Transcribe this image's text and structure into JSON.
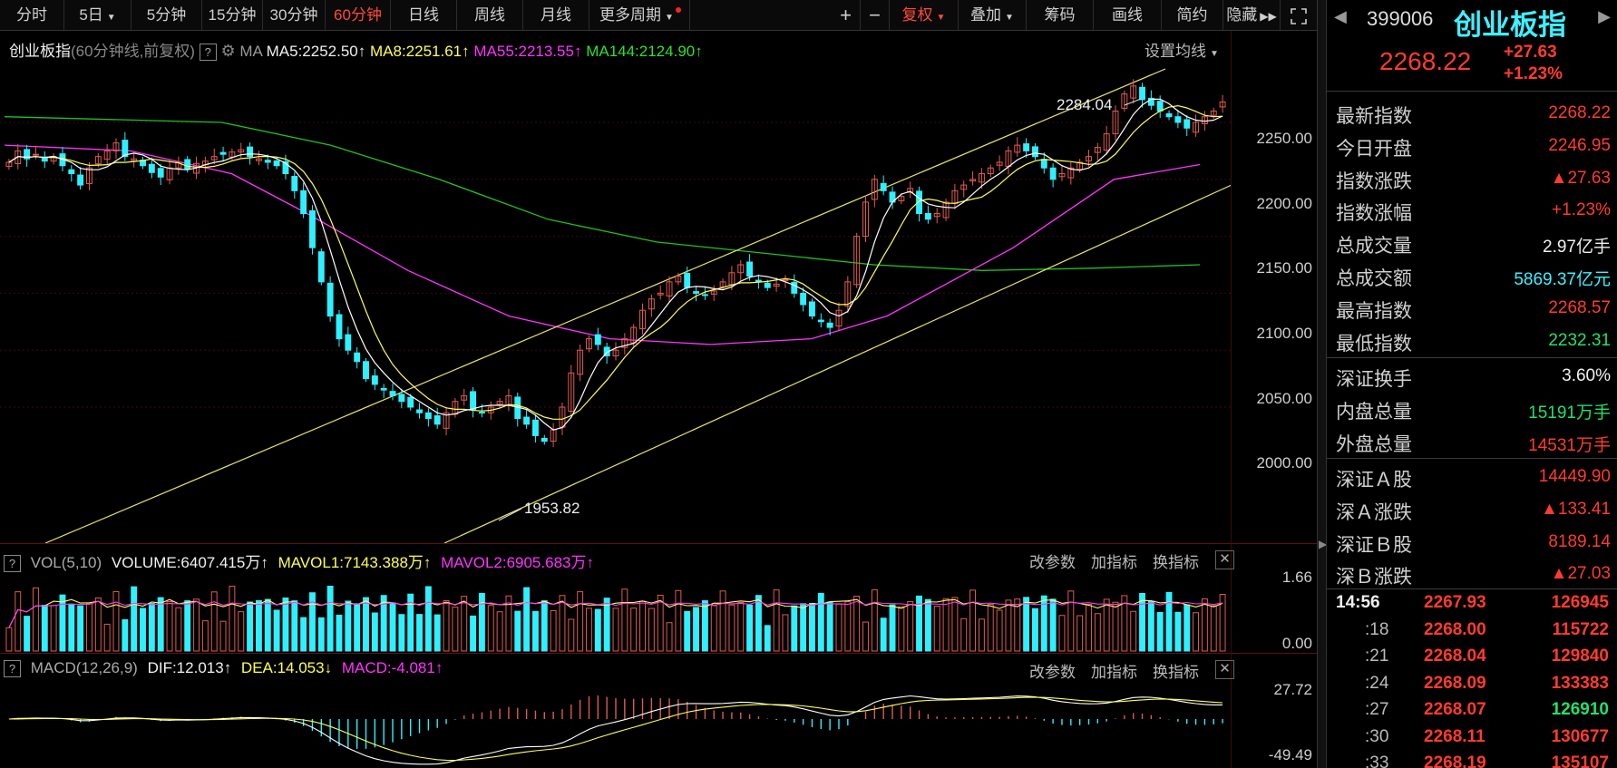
{
  "toolbar": {
    "periods": [
      {
        "label": "分时",
        "active": false
      },
      {
        "label": "5日",
        "active": false,
        "dropdown": true
      },
      {
        "label": "5分钟",
        "active": false
      },
      {
        "label": "15分钟",
        "active": false
      },
      {
        "label": "30分钟",
        "active": false
      },
      {
        "label": "60分钟",
        "active": true
      },
      {
        "label": "日线",
        "active": false
      },
      {
        "label": "周线",
        "active": false
      },
      {
        "label": "月线",
        "active": false
      },
      {
        "label": "更多周期",
        "active": false,
        "dropdown": true
      }
    ],
    "zoom_in": "+",
    "zoom_out": "−",
    "fuquan": "复权",
    "overlay": "叠加",
    "chips": "筹码",
    "draw": "画线",
    "simple": "简约",
    "hide": "隐藏",
    "expand_icon": "fullscreen-icon"
  },
  "main_legend": {
    "name": "创业板指",
    "period_note": "(60分钟线,前复权)",
    "ma_label": "MA",
    "ma5": "MA5:2252.50",
    "ma8": "MA8:2251.61",
    "ma55": "MA55:2213.55",
    "ma144": "MA144:2124.90",
    "settings": "设置均线"
  },
  "vol_legend": {
    "label": "VOL(5,10)",
    "volume": "VOLUME:6407.415万",
    "mavol1": "MAVOL1:7143.388万",
    "mavol2": "MAVOL2:6905.683万",
    "btn_params": "改参数",
    "btn_add": "加指标",
    "btn_switch": "换指标"
  },
  "macd_legend": {
    "label": "MACD(12,26,9)",
    "dif": "DIF:12.013",
    "dea": "DEA:14.053",
    "macd": "MACD:-4.081",
    "btn_params": "改参数",
    "btn_add": "加指标",
    "btn_switch": "换指标"
  },
  "annotations": {
    "high": "2284.04",
    "low": "1953.82"
  },
  "colors": {
    "up": "#ff3b30",
    "down": "#22e06a",
    "ma5": "#ffffff",
    "ma8": "#ffff54",
    "ma55": "#ff33ff",
    "ma144": "#22c022",
    "bear": "#2ef0ff",
    "bull": "#e05b52"
  },
  "chart_data": [
    {
      "type": "line",
      "title": "创业板指 60分钟线 前复权",
      "y_ticks": [
        "2250.00",
        "2200.00",
        "2150.00",
        "2100.00",
        "2050.00",
        "2000.00"
      ],
      "ylim": [
        1940,
        2300
      ],
      "closes": [
        2215,
        2225,
        2218,
        2222,
        2216,
        2220,
        2212,
        2205,
        2195,
        2210,
        2220,
        2225,
        2232,
        2220,
        2218,
        2212,
        2206,
        2202,
        2210,
        2215,
        2209,
        2214,
        2216,
        2220,
        2222,
        2224,
        2226,
        2220,
        2218,
        2215,
        2212,
        2205,
        2190,
        2170,
        2140,
        2110,
        2080,
        2060,
        2050,
        2040,
        2025,
        2020,
        2015,
        2010,
        2005,
        2000,
        1995,
        1990,
        1985,
        1995,
        2005,
        2010,
        1998,
        1995,
        2000,
        2005,
        2010,
        1990,
        1985,
        1975,
        1970,
        1980,
        2000,
        2030,
        2050,
        2060,
        2055,
        2045,
        2050,
        2060,
        2070,
        2085,
        2095,
        2100,
        2110,
        2115,
        2105,
        2100,
        2098,
        2102,
        2110,
        2118,
        2125,
        2115,
        2110,
        2105,
        2108,
        2112,
        2100,
        2090,
        2080,
        2075,
        2070,
        2085,
        2110,
        2150,
        2180,
        2200,
        2190,
        2180,
        2185,
        2192,
        2170,
        2165,
        2170,
        2180,
        2190,
        2195,
        2200,
        2205,
        2210,
        2215,
        2225,
        2230,
        2225,
        2220,
        2210,
        2200,
        2205,
        2210,
        2215,
        2220,
        2228,
        2240,
        2260,
        2275,
        2282,
        2270,
        2265,
        2260,
        2255,
        2250,
        2245,
        2250,
        2255,
        2260,
        2268
      ],
      "ma144_points": [
        [
          0,
          2255
        ],
        [
          40,
          2250
        ],
        [
          60,
          2230
        ],
        [
          80,
          2200
        ],
        [
          100,
          2165
        ],
        [
          120,
          2145
        ],
        [
          140,
          2135
        ],
        [
          160,
          2125
        ],
        [
          180,
          2120
        ],
        [
          200,
          2122
        ],
        [
          220,
          2125
        ]
      ],
      "ma55_points": [
        [
          0,
          2230
        ],
        [
          25,
          2225
        ],
        [
          45,
          2205
        ],
        [
          60,
          2170
        ],
        [
          80,
          2120
        ],
        [
          100,
          2080
        ],
        [
          120,
          2060
        ],
        [
          140,
          2055
        ],
        [
          160,
          2060
        ],
        [
          175,
          2080
        ],
        [
          200,
          2140
        ],
        [
          220,
          2200
        ],
        [
          237,
          2213
        ]
      ],
      "channel_upper": [
        [
          0,
          1940
        ],
        [
          1,
          2290
        ]
      ],
      "channel_lower": [
        [
          0,
          1940
        ],
        [
          1,
          2190
        ]
      ],
      "high_label": "2284.04",
      "low_label": "1953.82"
    },
    {
      "type": "bar",
      "title": "VOL(5,10)",
      "y_ticks": [
        "1.66",
        "0.00"
      ],
      "ylim": [
        0,
        1.66
      ]
    },
    {
      "type": "bar",
      "title": "MACD(12,26,9)",
      "y_ticks": [
        "27.72",
        "-49.49"
      ],
      "ylim": [
        -49.49,
        27.72
      ]
    }
  ],
  "quote": {
    "code": "399006",
    "name": "创业板指",
    "price": "2268.22",
    "change": "+27.63",
    "change_pct": "+1.23%",
    "rows1": [
      {
        "label": "最新指数",
        "value": "2268.22",
        "color": "red"
      },
      {
        "label": "今日开盘",
        "value": "2246.95",
        "color": "red"
      },
      {
        "label": "指数涨跌",
        "value": "▲27.63",
        "color": "red"
      },
      {
        "label": "指数涨幅",
        "value": "+1.23%",
        "color": "red"
      },
      {
        "label": "总成交量",
        "value": "2.97亿手",
        "color": "white"
      },
      {
        "label": "总成交额",
        "value": "5869.37亿元",
        "color": "cyan"
      },
      {
        "label": "最高指数",
        "value": "2268.57",
        "color": "red"
      },
      {
        "label": "最低指数",
        "value": "2232.31",
        "color": "grn"
      }
    ],
    "rows2": [
      {
        "label": "深证换手",
        "value": "3.60%",
        "color": "white"
      },
      {
        "label": "内盘总量",
        "value": "15191万手",
        "color": "grn"
      },
      {
        "label": "外盘总量",
        "value": "14531万手",
        "color": "red"
      }
    ],
    "rows3": [
      {
        "label": "深证Ａ股",
        "value": "14449.90",
        "color": "red"
      },
      {
        "label": "深Ａ涨跌",
        "value": "▲133.41",
        "color": "red"
      },
      {
        "label": "深证Ｂ股",
        "value": "8189.14",
        "color": "red"
      },
      {
        "label": "深Ｂ涨跌",
        "value": "▲27.03",
        "color": "red"
      }
    ],
    "ticks": [
      {
        "time": "14:56",
        "price": "2267.93",
        "vol": "126945",
        "vol_color": "red"
      },
      {
        "time": ":18",
        "price": "2268.00",
        "vol": "115722",
        "vol_color": "red"
      },
      {
        "time": ":21",
        "price": "2268.04",
        "vol": "129840",
        "vol_color": "red"
      },
      {
        "time": ":24",
        "price": "2268.09",
        "vol": "133383",
        "vol_color": "red"
      },
      {
        "time": ":27",
        "price": "2268.07",
        "vol": "126910",
        "vol_color": "grn"
      },
      {
        "time": ":30",
        "price": "2268.11",
        "vol": "130677",
        "vol_color": "red"
      },
      {
        "time": ":33",
        "price": "2268.19",
        "vol": "135107",
        "vol_color": "red"
      }
    ]
  }
}
